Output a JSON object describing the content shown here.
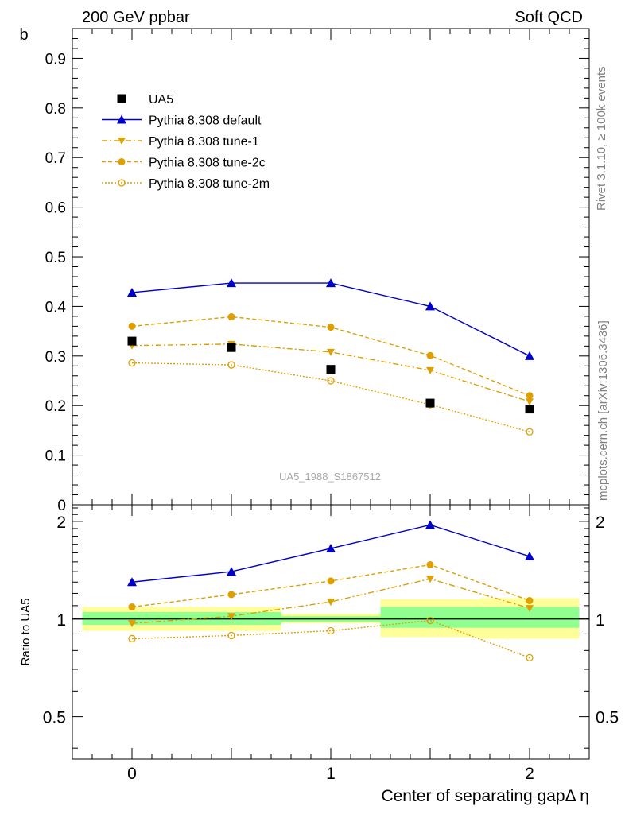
{
  "header": {
    "left": "200 GeV ppbar",
    "right": "Soft QCD"
  },
  "side_labels": {
    "top": "Rivet 3.1.10, ≥ 100k events",
    "bottom": "mcplots.cern.ch [arXiv:1306.3436]"
  },
  "watermark": "UA5_1988_S1867512",
  "colors": {
    "default": "#0000cc",
    "tune": "#dea000",
    "band_inner": "#90ff90",
    "band_outer": "#ffff99"
  },
  "chart_data": [
    {
      "type": "line",
      "panel": "main",
      "ylabel": "b",
      "xlabel": "Center of separating gapΔ η",
      "xlim": [
        -0.3,
        2.3
      ],
      "ylim": [
        0,
        0.96
      ],
      "y_ticks": [
        "0",
        "0.1",
        "0.2",
        "0.3",
        "0.4",
        "0.5",
        "0.6",
        "0.7",
        "0.8",
        "0.9"
      ],
      "x_ticks": [
        "0",
        "1",
        "2"
      ],
      "data": {
        "name": "UA5",
        "x": [
          0,
          0.5,
          1,
          1.5,
          2
        ],
        "y": [
          0.33,
          0.317,
          0.273,
          0.205,
          0.193
        ]
      },
      "series": [
        {
          "name": "Pythia 8.308 default",
          "x": [
            0,
            0.5,
            1,
            1.5,
            2
          ],
          "values": [
            0.428,
            0.447,
            0.447,
            0.4,
            0.3
          ]
        },
        {
          "name": "Pythia 8.308 tune-1",
          "x": [
            0,
            0.5,
            1,
            1.5,
            2
          ],
          "values": [
            0.321,
            0.324,
            0.308,
            0.271,
            0.208
          ]
        },
        {
          "name": "Pythia 8.308 tune-2c",
          "x": [
            0,
            0.5,
            1,
            1.5,
            2
          ],
          "values": [
            0.36,
            0.379,
            0.358,
            0.301,
            0.22
          ]
        },
        {
          "name": "Pythia 8.308 tune-2m",
          "x": [
            0,
            0.5,
            1,
            1.5,
            2
          ],
          "values": [
            0.286,
            0.282,
            0.25,
            0.202,
            0.147
          ]
        }
      ]
    },
    {
      "type": "line",
      "panel": "ratio",
      "ylabel": "Ratio to UA5",
      "ylim": [
        0.37,
        2.25
      ],
      "y_ticks": [
        "0.5",
        "1",
        "2"
      ],
      "y_tick_values": [
        0.5,
        1,
        2
      ],
      "uncertainty_bands": [
        {
          "x": [
            -0.25,
            0.75
          ],
          "inner": [
            0.96,
            1.05
          ],
          "outer": [
            0.92,
            1.09
          ]
        },
        {
          "x": [
            0.75,
            1.25
          ],
          "inner": [
            0.98,
            1.02
          ],
          "outer": [
            0.97,
            1.04
          ]
        },
        {
          "x": [
            1.25,
            1.75
          ],
          "inner": [
            0.94,
            1.09
          ],
          "outer": [
            0.88,
            1.15
          ]
        },
        {
          "x": [
            1.75,
            2.25
          ],
          "inner": [
            0.94,
            1.09
          ],
          "outer": [
            0.87,
            1.16
          ]
        }
      ],
      "series": [
        {
          "name": "Pythia 8.308 default",
          "x": [
            0,
            0.5,
            1,
            1.5,
            2
          ],
          "values": [
            1.3,
            1.4,
            1.65,
            1.95,
            1.56
          ]
        },
        {
          "name": "Pythia 8.308 tune-1",
          "x": [
            0,
            0.5,
            1,
            1.5,
            2
          ],
          "values": [
            0.97,
            1.02,
            1.13,
            1.33,
            1.08
          ]
        },
        {
          "name": "Pythia 8.308 tune-2c",
          "x": [
            0,
            0.5,
            1,
            1.5,
            2
          ],
          "values": [
            1.09,
            1.19,
            1.31,
            1.47,
            1.14
          ]
        },
        {
          "name": "Pythia 8.308 tune-2m",
          "x": [
            0,
            0.5,
            1,
            1.5,
            2
          ],
          "values": [
            0.87,
            0.89,
            0.92,
            0.99,
            0.76
          ]
        }
      ]
    }
  ]
}
